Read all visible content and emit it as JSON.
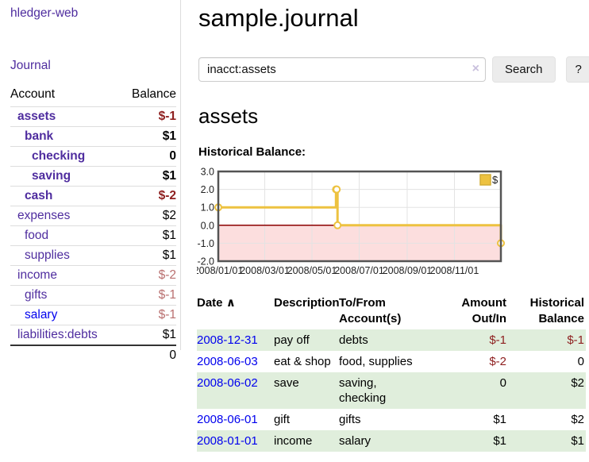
{
  "app": {
    "title": "hledger-web"
  },
  "sidebar": {
    "journal_label": "Journal",
    "table": {
      "account_header": "Account",
      "balance_header": "Balance",
      "accounts": [
        {
          "name": "assets",
          "indent": 0,
          "bold": true,
          "balance": "$-1",
          "balance_tone": "neg-strong"
        },
        {
          "name": "bank",
          "indent": 1,
          "bold": true,
          "balance": "$1",
          "balance_tone": "normal"
        },
        {
          "name": "checking",
          "indent": 2,
          "bold": true,
          "balance": "0",
          "balance_tone": "normal"
        },
        {
          "name": "saving",
          "indent": 2,
          "bold": true,
          "balance": "$1",
          "balance_tone": "normal"
        },
        {
          "name": "cash",
          "indent": 1,
          "bold": true,
          "balance": "$-2",
          "balance_tone": "neg-strong"
        },
        {
          "name": "expenses",
          "indent": 0,
          "bold": false,
          "balance": "$2",
          "balance_tone": "normal"
        },
        {
          "name": "food",
          "indent": 1,
          "bold": false,
          "balance": "$1",
          "balance_tone": "normal"
        },
        {
          "name": "supplies",
          "indent": 1,
          "bold": false,
          "balance": "$1",
          "balance_tone": "normal"
        },
        {
          "name": "income",
          "indent": 0,
          "bold": false,
          "balance": "$-2",
          "balance_tone": "neg-soft"
        },
        {
          "name": "gifts",
          "indent": 1,
          "bold": false,
          "balance": "$-1",
          "balance_tone": "neg-soft"
        },
        {
          "name": "salary",
          "indent": 1,
          "bold": false,
          "balance": "$-1",
          "balance_tone": "neg-soft",
          "link_tone": "blue"
        },
        {
          "name": "liabilities:debts",
          "indent": 0,
          "bold": false,
          "balance": "$1",
          "balance_tone": "normal"
        }
      ],
      "total": "0"
    }
  },
  "main": {
    "title": "sample.journal",
    "search": {
      "value": "inacct:assets",
      "clear_icon": "×",
      "button_label": "Search",
      "help_label": "?"
    },
    "account_heading": "assets",
    "chart_title": "Historical Balance:"
  },
  "chart_data": {
    "type": "line",
    "step": true,
    "title": "Historical Balance:",
    "series": [
      {
        "name": "$",
        "color": "#edc240",
        "points": [
          {
            "x": "2008-01-01",
            "y": 1
          },
          {
            "x": "2008-06-01",
            "y": 2
          },
          {
            "x": "2008-06-02",
            "y": 2
          },
          {
            "x": "2008-06-03",
            "y": 0
          },
          {
            "x": "2008-12-31",
            "y": -1
          }
        ]
      }
    ],
    "x_start": "2008-01-01",
    "x_end": "2008-12-31",
    "x_tick_labels": [
      "2008/01/01",
      "2008/03/01",
      "2008/05/01",
      "2008/07/01",
      "2008/09/01",
      "2008/11/01"
    ],
    "y_ticks": [
      3.0,
      2.0,
      1.0,
      0.0,
      -1.0,
      -2.0
    ],
    "ylim": [
      -2,
      3
    ],
    "grid": true,
    "legend_position": "top-right",
    "legend_label": "$",
    "colors": {
      "line": "#edc240",
      "grid": "#e3e3e3",
      "border": "#545454",
      "negative_region_fill": "#fcdede",
      "zero_line": "#8b0000"
    }
  },
  "register": {
    "columns": [
      "Date",
      "Description",
      "To/From Account(s)",
      "Amount Out/In",
      "Historical Balance"
    ],
    "sort_indicator": "∧",
    "rows": [
      {
        "date": "2008-12-31",
        "description": "pay off",
        "accounts": "debts",
        "amount": "$-1",
        "amount_tone": "neg",
        "balance": "$-1",
        "balance_tone": "neg",
        "stripe": true
      },
      {
        "date": "2008-06-03",
        "description": "eat & shop",
        "accounts": "food, supplies",
        "amount": "$-2",
        "amount_tone": "neg",
        "balance": "0",
        "balance_tone": "normal",
        "stripe": false
      },
      {
        "date": "2008-06-02",
        "description": "save",
        "accounts": "saving, checking",
        "amount": "0",
        "amount_tone": "normal",
        "balance": "$2",
        "balance_tone": "normal",
        "stripe": true
      },
      {
        "date": "2008-06-01",
        "description": "gift",
        "accounts": "gifts",
        "amount": "$1",
        "amount_tone": "normal",
        "balance": "$2",
        "balance_tone": "normal",
        "stripe": false
      },
      {
        "date": "2008-01-01",
        "description": "income",
        "accounts": "salary",
        "amount": "$1",
        "amount_tone": "normal",
        "balance": "$1",
        "balance_tone": "normal",
        "stripe": true
      }
    ]
  }
}
